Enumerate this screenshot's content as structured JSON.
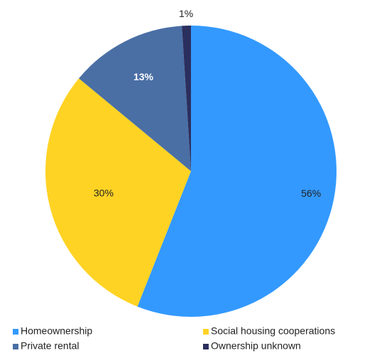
{
  "chart_data": {
    "type": "pie",
    "categories": [
      "Homeownership",
      "Social housing cooperations",
      "Private rental",
      "Ownership unknown"
    ],
    "values": [
      56,
      30,
      13,
      1
    ],
    "value_labels": [
      "56%",
      "30%",
      "13%",
      "1%"
    ],
    "colors": [
      "#3399ff",
      "#ffd324",
      "#4a6fa5",
      "#2b2f5e"
    ],
    "legend": "bottom"
  }
}
